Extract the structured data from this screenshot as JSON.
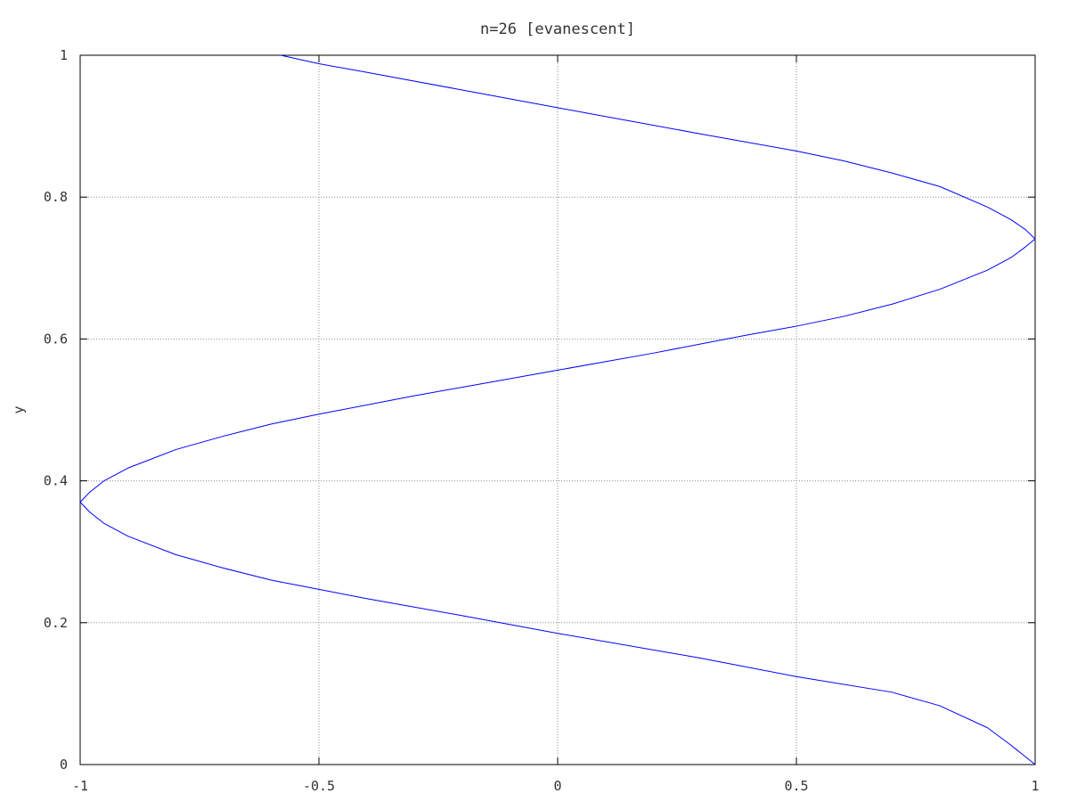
{
  "chart_data": {
    "type": "line",
    "title": "n=26 [evanescent]",
    "xlabel": "",
    "ylabel": "y",
    "xlim": [
      -1,
      1
    ],
    "ylim": [
      0,
      1
    ],
    "grid": true,
    "x_ticks": [
      -1,
      -0.5,
      0,
      0.5,
      1
    ],
    "x_tick_labels": [
      "-1",
      "-0.5",
      "0",
      "0.5",
      "1"
    ],
    "y_ticks": [
      0,
      0.2,
      0.4,
      0.6,
      0.8,
      1
    ],
    "y_tick_labels": [
      "0",
      "0.2",
      "0.4",
      "0.6",
      "0.8",
      "1"
    ],
    "series": [
      {
        "color": "#0000ff",
        "points": [
          {
            "x": 1.0,
            "y": 0.0
          },
          {
            "x": 0.95,
            "y": 0.027
          },
          {
            "x": 0.9,
            "y": 0.052
          },
          {
            "x": 0.8,
            "y": 0.083
          },
          {
            "x": 0.7,
            "y": 0.102
          },
          {
            "x": 0.5,
            "y": 0.124
          },
          {
            "x": 0.3,
            "y": 0.15
          },
          {
            "x": 0.0,
            "y": 0.185
          },
          {
            "x": -0.2,
            "y": 0.21
          },
          {
            "x": -0.4,
            "y": 0.234
          },
          {
            "x": -0.5,
            "y": 0.247
          },
          {
            "x": -0.6,
            "y": 0.26
          },
          {
            "x": -0.7,
            "y": 0.277
          },
          {
            "x": -0.8,
            "y": 0.296
          },
          {
            "x": -0.9,
            "y": 0.322
          },
          {
            "x": -0.95,
            "y": 0.34
          },
          {
            "x": -0.98,
            "y": 0.356
          },
          {
            "x": -1.0,
            "y": 0.37
          },
          {
            "x": -0.98,
            "y": 0.384
          },
          {
            "x": -0.95,
            "y": 0.4
          },
          {
            "x": -0.9,
            "y": 0.418
          },
          {
            "x": -0.8,
            "y": 0.444
          },
          {
            "x": -0.7,
            "y": 0.463
          },
          {
            "x": -0.6,
            "y": 0.48
          },
          {
            "x": -0.5,
            "y": 0.494
          },
          {
            "x": -0.3,
            "y": 0.52
          },
          {
            "x": -0.1,
            "y": 0.544
          },
          {
            "x": 0.0,
            "y": 0.556
          },
          {
            "x": 0.2,
            "y": 0.58
          },
          {
            "x": 0.4,
            "y": 0.606
          },
          {
            "x": 0.5,
            "y": 0.618
          },
          {
            "x": 0.6,
            "y": 0.632
          },
          {
            "x": 0.7,
            "y": 0.649
          },
          {
            "x": 0.8,
            "y": 0.67
          },
          {
            "x": 0.9,
            "y": 0.697
          },
          {
            "x": 0.95,
            "y": 0.715
          },
          {
            "x": 0.98,
            "y": 0.73
          },
          {
            "x": 1.0,
            "y": 0.741
          },
          {
            "x": 0.98,
            "y": 0.754
          },
          {
            "x": 0.95,
            "y": 0.768
          },
          {
            "x": 0.9,
            "y": 0.786
          },
          {
            "x": 0.8,
            "y": 0.815
          },
          {
            "x": 0.7,
            "y": 0.834
          },
          {
            "x": 0.6,
            "y": 0.851
          },
          {
            "x": 0.5,
            "y": 0.865
          },
          {
            "x": 0.3,
            "y": 0.889
          },
          {
            "x": 0.0,
            "y": 0.926
          },
          {
            "x": -0.2,
            "y": 0.951
          },
          {
            "x": -0.4,
            "y": 0.976
          },
          {
            "x": -0.5,
            "y": 0.988
          },
          {
            "x": -0.58,
            "y": 1.0
          }
        ]
      }
    ]
  }
}
